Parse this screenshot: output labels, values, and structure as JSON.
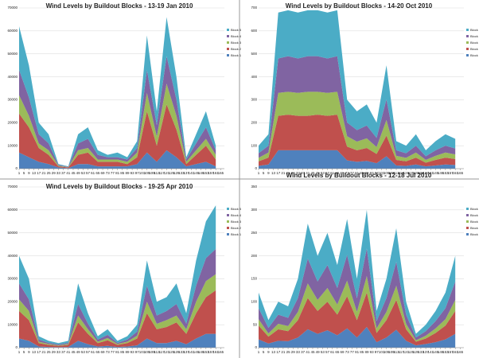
{
  "chart_data": [
    {
      "type": "stacked_area",
      "title": "Wind Levels by Buildout Blocks - 13-19 Jan 2010",
      "x": [
        1,
        9,
        17,
        25,
        33,
        41,
        49,
        57,
        65,
        73,
        81,
        89,
        97,
        105,
        113,
        121,
        129,
        137,
        145,
        153,
        161
      ],
      "xlim": [
        1,
        168
      ],
      "xticks": [
        1,
        5,
        9,
        13,
        17,
        21,
        25,
        29,
        33,
        37,
        41,
        45,
        49,
        53,
        57,
        61,
        65,
        69,
        73,
        77,
        81,
        85,
        89,
        93,
        97,
        101,
        105,
        109,
        113,
        117,
        121,
        125,
        129,
        133,
        137,
        141,
        145,
        149,
        153,
        157,
        161,
        165
      ],
      "ylim": [
        0,
        70000
      ],
      "yticks": [
        0,
        10000,
        20000,
        30000,
        40000,
        50000,
        60000,
        70000
      ],
      "grid": true,
      "series": [
        {
          "name": "Block 1",
          "color": "#4f81bd",
          "values": [
            7000,
            5000,
            3000,
            2000,
            500,
            200,
            2000,
            2000,
            1000,
            1000,
            1000,
            1000,
            2000,
            7000,
            3000,
            8000,
            5000,
            1000,
            2000,
            3000,
            1000
          ]
        },
        {
          "name": "Block 2",
          "color": "#c0504d",
          "values": [
            17000,
            13000,
            6000,
            4000,
            500,
            300,
            4000,
            5000,
            2000,
            2000,
            2000,
            1000,
            3000,
            18000,
            7000,
            20000,
            12000,
            1000,
            4000,
            7000,
            3000
          ]
        },
        {
          "name": "Block 3",
          "color": "#9bbb59",
          "values": [
            8000,
            5000,
            2000,
            2000,
            300,
            100,
            2000,
            2000,
            1000,
            1000,
            1000,
            1000,
            2000,
            8000,
            4000,
            9000,
            6000,
            1000,
            2000,
            3000,
            2000
          ]
        },
        {
          "name": "Block 4",
          "color": "#8064a2",
          "values": [
            11000,
            8000,
            4000,
            3000,
            300,
            200,
            3000,
            4000,
            2000,
            1000,
            1000,
            1000,
            2000,
            10000,
            5000,
            12000,
            7000,
            1000,
            3000,
            5000,
            2000
          ]
        },
        {
          "name": "Block 5",
          "color": "#4bacc6",
          "values": [
            19000,
            14000,
            5000,
            4000,
            400,
            200,
            4000,
            5000,
            2000,
            1000,
            2000,
            1000,
            3000,
            15000,
            6000,
            17000,
            10000,
            1000,
            4000,
            7000,
            2000
          ]
        }
      ]
    },
    {
      "type": "stacked_area",
      "title": "Wind Levels by Buildout Blocks - 14-20 Oct 2010",
      "x": [
        1,
        9,
        17,
        25,
        33,
        41,
        49,
        57,
        65,
        73,
        81,
        89,
        97,
        105,
        113,
        121,
        129,
        137,
        145,
        153,
        161
      ],
      "xlim": [
        1,
        168
      ],
      "xticks": [
        1,
        5,
        9,
        13,
        17,
        21,
        25,
        29,
        33,
        37,
        41,
        45,
        49,
        53,
        57,
        61,
        65,
        69,
        73,
        77,
        81,
        85,
        89,
        93,
        97,
        101,
        105,
        109,
        113,
        117,
        121,
        125,
        129,
        133,
        137,
        141,
        145,
        149,
        153,
        157,
        161,
        165
      ],
      "ylim": [
        0,
        700
      ],
      "yticks": [
        0,
        100,
        200,
        300,
        400,
        500,
        600,
        700
      ],
      "grid": true,
      "series": [
        {
          "name": "Block 1",
          "color": "#4f81bd",
          "values": [
            12,
            18,
            80,
            80,
            80,
            80,
            80,
            80,
            80,
            36,
            30,
            34,
            24,
            54,
            14,
            12,
            18,
            10,
            14,
            18,
            16
          ]
        },
        {
          "name": "Block 2",
          "color": "#c0504d",
          "values": [
            20,
            30,
            150,
            155,
            150,
            150,
            155,
            150,
            155,
            60,
            50,
            56,
            40,
            90,
            24,
            20,
            30,
            16,
            24,
            30,
            26
          ]
        },
        {
          "name": "Block 3",
          "color": "#9bbb59",
          "values": [
            15,
            22,
            100,
            100,
            100,
            105,
            100,
            100,
            100,
            45,
            38,
            42,
            30,
            68,
            18,
            15,
            22,
            12,
            18,
            22,
            20
          ]
        },
        {
          "name": "Block 4",
          "color": "#8064a2",
          "values": [
            20,
            30,
            150,
            155,
            150,
            155,
            155,
            150,
            155,
            60,
            50,
            56,
            40,
            90,
            24,
            20,
            30,
            16,
            24,
            30,
            26
          ]
        },
        {
          "name": "Block 5",
          "color": "#4bacc6",
          "values": [
            33,
            50,
            200,
            200,
            200,
            200,
            200,
            200,
            200,
            99,
            82,
            92,
            66,
            148,
            40,
            33,
            50,
            26,
            40,
            50,
            42
          ]
        }
      ]
    },
    {
      "type": "stacked_area",
      "title": "Wind Levels by Buildout Blocks - 19-25 Apr 2010",
      "x": [
        1,
        9,
        17,
        25,
        33,
        41,
        49,
        57,
        65,
        73,
        81,
        89,
        97,
        105,
        113,
        121,
        129,
        137,
        145,
        153,
        161
      ],
      "xlim": [
        1,
        168
      ],
      "xticks": [
        1,
        5,
        9,
        13,
        17,
        21,
        25,
        29,
        33,
        37,
        41,
        45,
        49,
        53,
        57,
        61,
        65,
        69,
        73,
        77,
        81,
        85,
        89,
        93,
        97,
        101,
        105,
        109,
        113,
        117,
        121,
        125,
        129,
        133,
        137,
        141,
        145,
        149,
        153,
        157,
        161,
        165
      ],
      "ylim": [
        0,
        70000
      ],
      "yticks": [
        0,
        10000,
        20000,
        30000,
        40000,
        50000,
        60000,
        70000
      ],
      "grid": true,
      "series": [
        {
          "name": "Block 1",
          "color": "#4f81bd",
          "values": [
            4000,
            3000,
            500,
            300,
            200,
            300,
            3000,
            1500,
            500,
            800,
            300,
            500,
            1000,
            4000,
            2000,
            2000,
            3000,
            1500,
            4000,
            6000,
            6000
          ]
        },
        {
          "name": "Block 2",
          "color": "#c0504d",
          "values": [
            12000,
            9000,
            1500,
            900,
            600,
            900,
            8000,
            4500,
            1500,
            2400,
            900,
            1500,
            3000,
            11000,
            6000,
            7000,
            8000,
            4500,
            11000,
            16000,
            19000
          ]
        },
        {
          "name": "Block 3",
          "color": "#9bbb59",
          "values": [
            5000,
            4000,
            600,
            400,
            200,
            400,
            3000,
            2000,
            600,
            1000,
            400,
            600,
            1200,
            5000,
            2400,
            3000,
            3000,
            2000,
            5000,
            7000,
            7000
          ]
        },
        {
          "name": "Block 4",
          "color": "#8064a2",
          "values": [
            7000,
            5000,
            900,
            500,
            400,
            500,
            5000,
            2500,
            900,
            1400,
            500,
            900,
            1800,
            7000,
            3600,
            4000,
            5000,
            2500,
            7000,
            10000,
            11000
          ]
        },
        {
          "name": "Block 5",
          "color": "#4bacc6",
          "values": [
            12000,
            9000,
            1500,
            900,
            600,
            900,
            9000,
            4500,
            1500,
            2400,
            900,
            1500,
            3000,
            11000,
            6000,
            6000,
            9000,
            4500,
            11000,
            16000,
            19000
          ]
        }
      ]
    },
    {
      "type": "stacked_area",
      "title": "Wind Levels by Buildout Blocks - 12-18 Jul 2010",
      "x": [
        1,
        9,
        17,
        25,
        33,
        41,
        49,
        57,
        65,
        73,
        81,
        89,
        97,
        105,
        113,
        121,
        129,
        137,
        145,
        153,
        161
      ],
      "xlim": [
        1,
        168
      ],
      "xticks": [
        1,
        5,
        9,
        13,
        17,
        21,
        25,
        29,
        33,
        37,
        41,
        45,
        49,
        53,
        57,
        61,
        65,
        69,
        73,
        77,
        81,
        85,
        89,
        93,
        97,
        101,
        105,
        109,
        113,
        117,
        121,
        125,
        129,
        133,
        137,
        141,
        145,
        149,
        153,
        157,
        161,
        165
      ],
      "ylim": [
        0,
        350
      ],
      "yticks": [
        0,
        50,
        100,
        150,
        200,
        250,
        300,
        350
      ],
      "grid": true,
      "series": [
        {
          "name": "Block 1",
          "color": "#4f81bd",
          "values": [
            18,
            9,
            15,
            14,
            22,
            40,
            30,
            38,
            27,
            42,
            22,
            45,
            12,
            22,
            39,
            15,
            5,
            8,
            12,
            18,
            30
          ]
        },
        {
          "name": "Block 2",
          "color": "#c0504d",
          "values": [
            30,
            15,
            25,
            22,
            38,
            68,
            50,
            62,
            45,
            70,
            38,
            75,
            20,
            38,
            65,
            25,
            8,
            12,
            20,
            30,
            50
          ]
        },
        {
          "name": "Block 3",
          "color": "#9bbb59",
          "values": [
            14,
            7,
            12,
            11,
            18,
            32,
            24,
            30,
            22,
            34,
            18,
            36,
            10,
            18,
            31,
            12,
            3,
            6,
            10,
            14,
            24
          ]
        },
        {
          "name": "Block 4",
          "color": "#8064a2",
          "values": [
            24,
            12,
            20,
            18,
            30,
            54,
            40,
            50,
            36,
            56,
            30,
            60,
            16,
            30,
            52,
            20,
            6,
            10,
            16,
            24,
            40
          ]
        },
        {
          "name": "Block 5",
          "color": "#4bacc6",
          "values": [
            34,
            17,
            28,
            25,
            42,
            76,
            56,
            70,
            50,
            78,
            42,
            84,
            22,
            42,
            73,
            28,
            8,
            14,
            22,
            34,
            56
          ]
        }
      ]
    }
  ]
}
